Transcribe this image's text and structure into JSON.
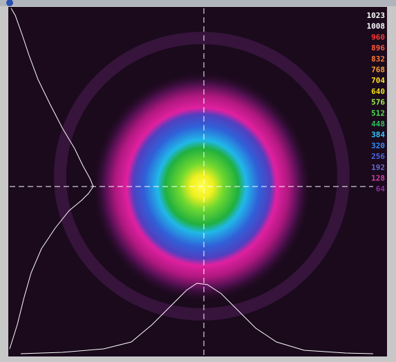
{
  "legend": [
    {
      "label": 1023,
      "color": "#ffffff"
    },
    {
      "label": 1008,
      "color": "#ffffff"
    },
    {
      "label": 960,
      "color": "#ff3838"
    },
    {
      "label": 896,
      "color": "#ff5a40"
    },
    {
      "label": 832,
      "color": "#ff7a38"
    },
    {
      "label": 768,
      "color": "#ffa030"
    },
    {
      "label": 704,
      "color": "#ffe020"
    },
    {
      "label": 640,
      "color": "#f0e010"
    },
    {
      "label": 576,
      "color": "#a0f050"
    },
    {
      "label": 512,
      "color": "#50e050"
    },
    {
      "label": 448,
      "color": "#30c060"
    },
    {
      "label": 384,
      "color": "#30c8ff"
    },
    {
      "label": 320,
      "color": "#3090ff"
    },
    {
      "label": 256,
      "color": "#4a68e8"
    },
    {
      "label": 192,
      "color": "#6a6ad0"
    },
    {
      "label": 128,
      "color": "#d040a8"
    },
    {
      "label": 64,
      "color": "#8a30a0"
    }
  ]
}
